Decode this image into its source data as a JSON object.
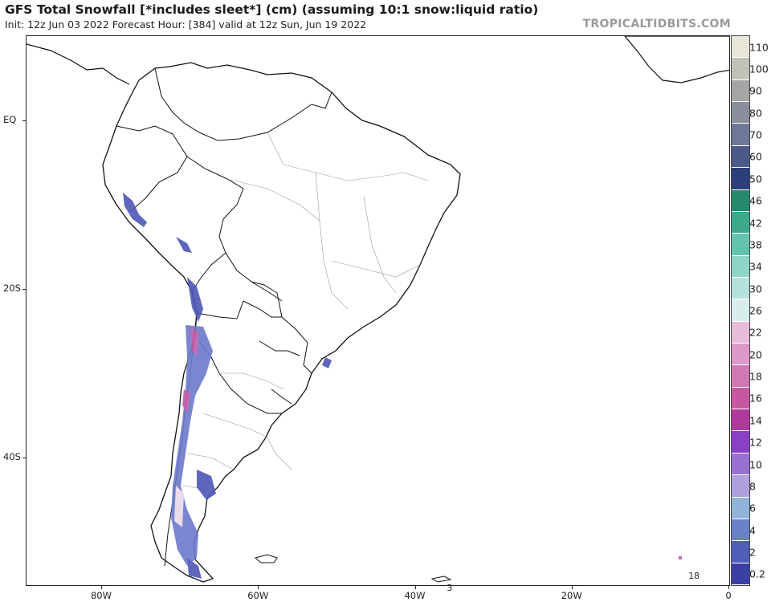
{
  "header": {
    "title": "GFS Total Snowfall [*includes sleet*] (cm) (assuming 10:1 snow:liquid ratio)",
    "subtitle": "Init: 12z Jun 03 2022   Forecast Hour: [384]   valid at 12z Sun, Jun 19 2022",
    "brand": "TROPICALTIDBITS.COM"
  },
  "axes": {
    "lat_labels": [
      {
        "label": "EQ",
        "lat": 0
      },
      {
        "label": "20S",
        "lat": -20
      },
      {
        "label": "40S",
        "lat": -40
      }
    ],
    "lon_labels": [
      {
        "label": "80W",
        "lon": -80
      },
      {
        "label": "60W",
        "lon": -60
      },
      {
        "label": "40W",
        "lon": -40
      },
      {
        "label": "20W",
        "lon": -20
      },
      {
        "label": "0",
        "lon": 0
      }
    ]
  },
  "colorbar": {
    "unit": "cm",
    "levels": [
      {
        "label": "0.2",
        "color": "#3b3fa3"
      },
      {
        "label": "2",
        "color": "#4e5fb8"
      },
      {
        "label": "4",
        "color": "#6a83c8"
      },
      {
        "label": "6",
        "color": "#8fb3d9"
      },
      {
        "label": "8",
        "color": "#aea0dd"
      },
      {
        "label": "10",
        "color": "#9a6fd3"
      },
      {
        "label": "12",
        "color": "#8a3fc9"
      },
      {
        "label": "14",
        "color": "#b03a9b"
      },
      {
        "label": "16",
        "color": "#c7589f"
      },
      {
        "label": "18",
        "color": "#d078b3"
      },
      {
        "label": "20",
        "color": "#dc98c6"
      },
      {
        "label": "22",
        "color": "#e8bbd9"
      },
      {
        "label": "26",
        "color": "#d9eeec"
      },
      {
        "label": "30",
        "color": "#b5e3dc"
      },
      {
        "label": "34",
        "color": "#8fd5c6"
      },
      {
        "label": "38",
        "color": "#63c4ad"
      },
      {
        "label": "42",
        "color": "#3aaa8b"
      },
      {
        "label": "46",
        "color": "#268a6d"
      },
      {
        "label": "50",
        "color": "#2c3f7a"
      },
      {
        "label": "60",
        "color": "#4c5a8a"
      },
      {
        "label": "70",
        "color": "#6e7796"
      },
      {
        "label": "80",
        "color": "#8b8f9b"
      },
      {
        "label": "90",
        "color": "#a4a6a6"
      },
      {
        "label": "100",
        "color": "#c2c2bb"
      },
      {
        "label": "110",
        "color": "#e8e6d8"
      }
    ]
  },
  "map_annotations": [
    {
      "text": "18",
      "lon": -4.5,
      "lat": -54.2
    },
    {
      "text": "3",
      "lon": -35.3,
      "lat": -55.6
    }
  ],
  "snow_regions_colors": {
    "light": "#4d57b5",
    "medium": "#6d79cc",
    "heavy": "#c05aa8",
    "extreme": "#e9d8e8"
  }
}
